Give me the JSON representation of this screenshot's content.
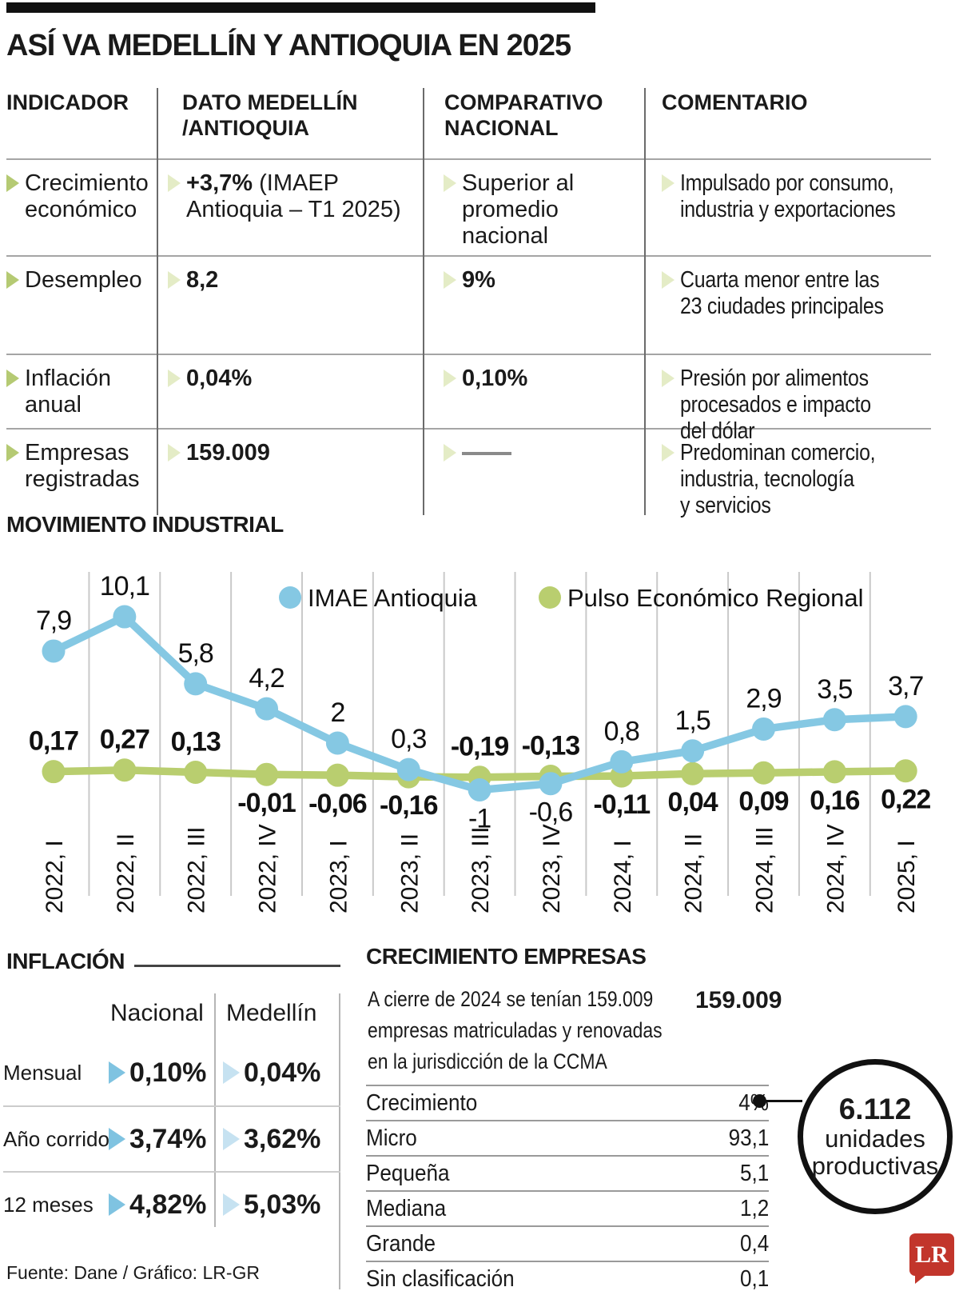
{
  "title": "ASÍ VA MEDELLÍN Y ANTIOQUIA EN 2025",
  "colors": {
    "accent_green": "#b5ca73",
    "pale_green": "#e4ecc6",
    "imae_blue": "#85c8e3",
    "pulso_green": "#b9ce6f",
    "nacional_blue": "#7fc3e1",
    "medellin_blue": "#c6e2f1",
    "logo_red": "#c2352b"
  },
  "indicator_table": {
    "headers": [
      "INDICADOR",
      "DATO MEDELLÍN\n/ANTIOQUIA",
      "COMPARATIVO\nNACIONAL",
      "COMENTARIO"
    ],
    "rows": [
      {
        "indicador": "Crecimiento\neconómico",
        "dato_destacado": "+3,7%",
        "dato_detalle": " (IMAEP\nAntioquia – T1 2025)",
        "comparativo": "Superior al\npromedio nacional",
        "comparativo_bold": false,
        "comentario": "Impulsado por consumo,\nindustria y exportaciones"
      },
      {
        "indicador": "Desempleo",
        "dato_destacado": "8,2",
        "dato_detalle": "",
        "comparativo": "9%",
        "comparativo_bold": true,
        "comentario": "Cuarta menor entre las\n23 ciudades principales"
      },
      {
        "indicador": "Inflación\nanual",
        "dato_destacado": "0,04%",
        "dato_detalle": "",
        "comparativo": "0,10%",
        "comparativo_bold": true,
        "comentario": "Presión por alimentos\nprocesados e impacto del dólar"
      },
      {
        "indicador": "Empresas\nregistradas",
        "dato_destacado": "159.009",
        "dato_detalle": "",
        "comparativo": "",
        "comparativo_bold": false,
        "comentario": "Predominan comercio,\nindustria, tecnología\ny servicios"
      }
    ]
  },
  "chart_data": {
    "type": "line",
    "title": "MOVIMIENTO INDUSTRIAL",
    "x": [
      "2022, I",
      "2022, II",
      "2022, III",
      "2022, IV",
      "2023, I",
      "2023, II",
      "2023, III",
      "2023, IV",
      "2024, I",
      "2024, II",
      "2024, III",
      "2024, IV",
      "2025, I"
    ],
    "series": [
      {
        "name": "IMAE Antioquia",
        "color": "#85c8e3",
        "values": [
          7.9,
          10.1,
          5.8,
          4.2,
          2,
          0.3,
          -1,
          -0.6,
          0.8,
          1.5,
          2.9,
          3.5,
          3.7
        ],
        "labels": [
          "7,9",
          "10,1",
          "5,8",
          "4,2",
          "2",
          "0,3",
          "-1",
          "-0,6",
          "0,8",
          "1,5",
          "2,9",
          "3,5",
          "3,7"
        ],
        "label_side": [
          "above",
          "above",
          "above",
          "above",
          "above",
          "above",
          "below",
          "below",
          "above",
          "above",
          "above",
          "above",
          "above"
        ]
      },
      {
        "name": "Pulso Económico Regional",
        "color": "#b9ce6f",
        "values": [
          0.17,
          0.27,
          0.13,
          -0.01,
          -0.06,
          -0.16,
          -0.19,
          -0.13,
          -0.11,
          0.04,
          0.09,
          0.16,
          0.22
        ],
        "labels": [
          "0,17",
          "0,27",
          "0,13",
          "-0,01",
          "-0,06",
          "-0,16",
          "-0,19",
          "-0,13",
          "-0,11",
          "0,04",
          "0,09",
          "0,16",
          "0,22"
        ],
        "label_side": [
          "above",
          "above",
          "above",
          "below",
          "below",
          "below",
          "above",
          "above",
          "below",
          "below",
          "below",
          "below",
          "below"
        ]
      }
    ],
    "ylim": [
      -1.5,
      10.6
    ],
    "grid": "vertical",
    "legend_position": "top"
  },
  "inflacion": {
    "title": "INFLACIÓN",
    "col_headers": [
      "Nacional",
      "Medellín"
    ],
    "rows": [
      {
        "label": "Mensual",
        "nacional": "0,10%",
        "medellin": "0,04%"
      },
      {
        "label": "Año corrido",
        "nacional": "3,74%",
        "medellin": "3,62%"
      },
      {
        "label": "12 meses",
        "nacional": "4,82%",
        "medellin": "5,03%"
      }
    ]
  },
  "crecimiento_empresas": {
    "title": "CRECIMIENTO EMPRESAS",
    "descripcion": "A cierre de 2024 se tenían 159.009\nempresas matriculadas y renovadas\nen la jurisdicción de la CCMA",
    "total": "159.009",
    "rows": [
      {
        "label": "Crecimiento",
        "value": "4%"
      },
      {
        "label": "Micro",
        "value": "93,1"
      },
      {
        "label": "Pequeña",
        "value": "5,1"
      },
      {
        "label": "Mediana",
        "value": "1,2"
      },
      {
        "label": "Grande",
        "value": "0,4"
      },
      {
        "label": "Sin clasificación",
        "value": "0,1"
      }
    ],
    "callout": {
      "valor": "6.112",
      "texto": "unidades\nproductivas"
    }
  },
  "footer": {
    "fuente": "Fuente: Dane / Gráfico: LR-GR",
    "logo": "LR"
  }
}
